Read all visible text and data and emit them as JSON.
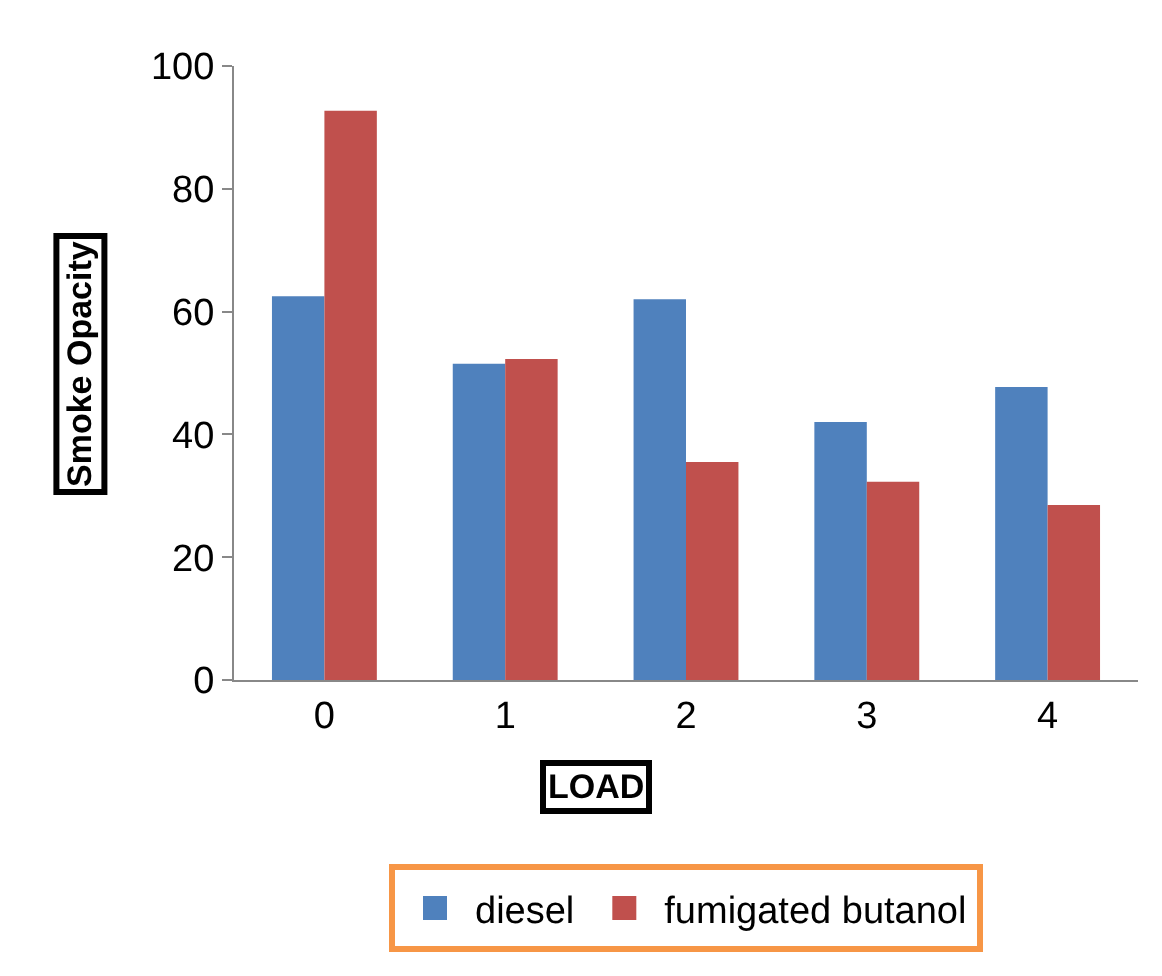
{
  "chart_data": {
    "type": "bar",
    "xlabel": "LOAD",
    "ylabel": "Smoke Opacity",
    "categories": [
      "0",
      "1",
      "2",
      "3",
      "4"
    ],
    "series": [
      {
        "name": "diesel",
        "color": "#4f81bd",
        "values": [
          62.5,
          51.5,
          62,
          42,
          47.7
        ]
      },
      {
        "name": "fumigated butanol",
        "color": "#c0504d",
        "values": [
          92.7,
          52.3,
          35.5,
          32.3,
          28.5
        ]
      }
    ],
    "ylim": [
      0,
      100
    ],
    "yticks": [
      0,
      20,
      40,
      60,
      80,
      100
    ],
    "legend": "bottom"
  }
}
